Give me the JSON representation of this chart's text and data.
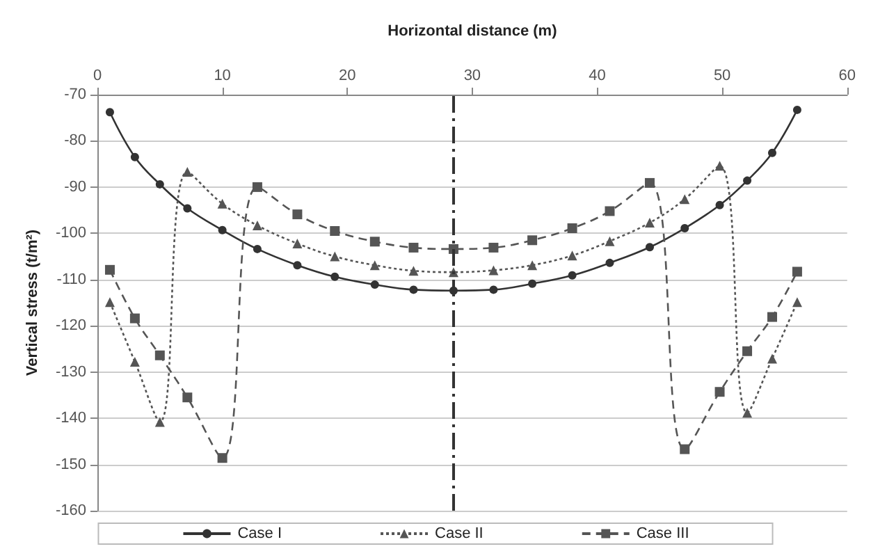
{
  "chart_data": {
    "type": "line",
    "xlabel": "Horizontal distance (m)",
    "ylabel": "Vertical stress (t/m²)",
    "x": [
      1,
      3,
      5,
      7.2,
      10,
      12.8,
      16,
      19,
      22.2,
      25.3,
      28.5,
      31.7,
      34.8,
      38,
      41,
      44.2,
      47,
      49.8,
      52,
      54,
      56
    ],
    "xlim": [
      0,
      60
    ],
    "xticks": [
      0,
      10,
      20,
      30,
      40,
      50,
      60
    ],
    "ylim": [
      -160,
      -70
    ],
    "yticks": [
      -160,
      -150,
      -140,
      -130,
      -120,
      -110,
      -100,
      -90,
      -80,
      -70
    ],
    "grid": "y",
    "legend": "bottom",
    "ref_lines": [
      {
        "axis": "x",
        "value": 28.5,
        "color": "#333333",
        "line_style": "dashdot"
      }
    ],
    "series": [
      {
        "name": "Case I",
        "color": "#333333",
        "marker": "circle",
        "line_style": "solid",
        "values": [
          -73.8,
          -83.5,
          -89.4,
          -94.6,
          -99.3,
          -103.4,
          -106.9,
          -109.4,
          -111.1,
          -112.2,
          -112.4,
          -112.2,
          -110.9,
          -109.1,
          -106.4,
          -103,
          -98.9,
          -93.9,
          -88.6,
          -82.6,
          -73.3
        ]
      },
      {
        "name": "Case II",
        "color": "#555555",
        "marker": "triangle",
        "line_style": "dotted",
        "values": [
          -114.9,
          -127.8,
          -140.8,
          -86.7,
          -93.6,
          -98.3,
          -102.2,
          -105,
          -106.9,
          -108.1,
          -108.4,
          -108,
          -106.9,
          -104.8,
          -101.7,
          -97.7,
          -92.6,
          -85.4,
          -138.8,
          -127.1,
          -114.9
        ]
      },
      {
        "name": "Case III",
        "color": "#555555",
        "marker": "square",
        "line_style": "dashed",
        "values": [
          -107.9,
          -118.4,
          -126.4,
          -135.5,
          -148.6,
          -90,
          -95.9,
          -99.5,
          -101.8,
          -103.1,
          -103.4,
          -103.1,
          -101.5,
          -98.9,
          -95.2,
          -89.1,
          -146.7,
          -134.3,
          -125.5,
          -118.1,
          -108.3
        ]
      }
    ]
  }
}
